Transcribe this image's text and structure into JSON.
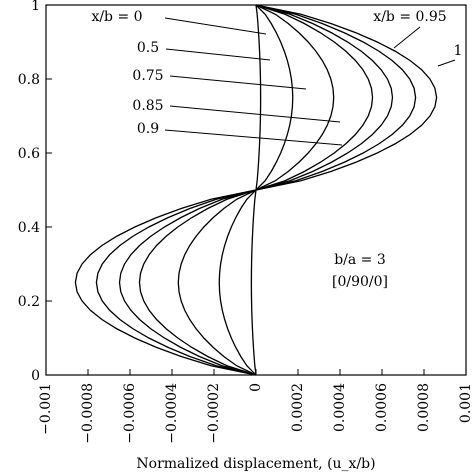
{
  "chart_data": {
    "type": "line",
    "xlabel": "Normalized displacement, (u_x/b)",
    "xlim": [
      -0.001,
      0.001
    ],
    "ylim": [
      0,
      1
    ],
    "xticks": [
      "−0.001",
      "−0.0008",
      "−0.0006",
      "−0.0004",
      "−0.0002",
      "0",
      "0.0002",
      "0.0004",
      "0.0006",
      "0.0008",
      "0.001"
    ],
    "yticks": [
      "0",
      "0.2",
      "0.4",
      "0.6",
      "0.8",
      "1"
    ],
    "grid": false,
    "annotations": [
      "b/a = 3",
      "[0/90/0]"
    ],
    "series": [
      {
        "name": "x/b = 0",
        "peak": 2.2e-05
      },
      {
        "name": "0.5",
        "peak": 0.000175
      },
      {
        "name": "0.75",
        "peak": 0.00037
      },
      {
        "name": "0.85",
        "peak": 0.000555
      },
      {
        "name": "0.9",
        "peak": 0.00065
      },
      {
        "name": "x/b = 0.95",
        "peak": 0.00076
      },
      {
        "name": "1",
        "peak": 0.00086
      }
    ]
  }
}
